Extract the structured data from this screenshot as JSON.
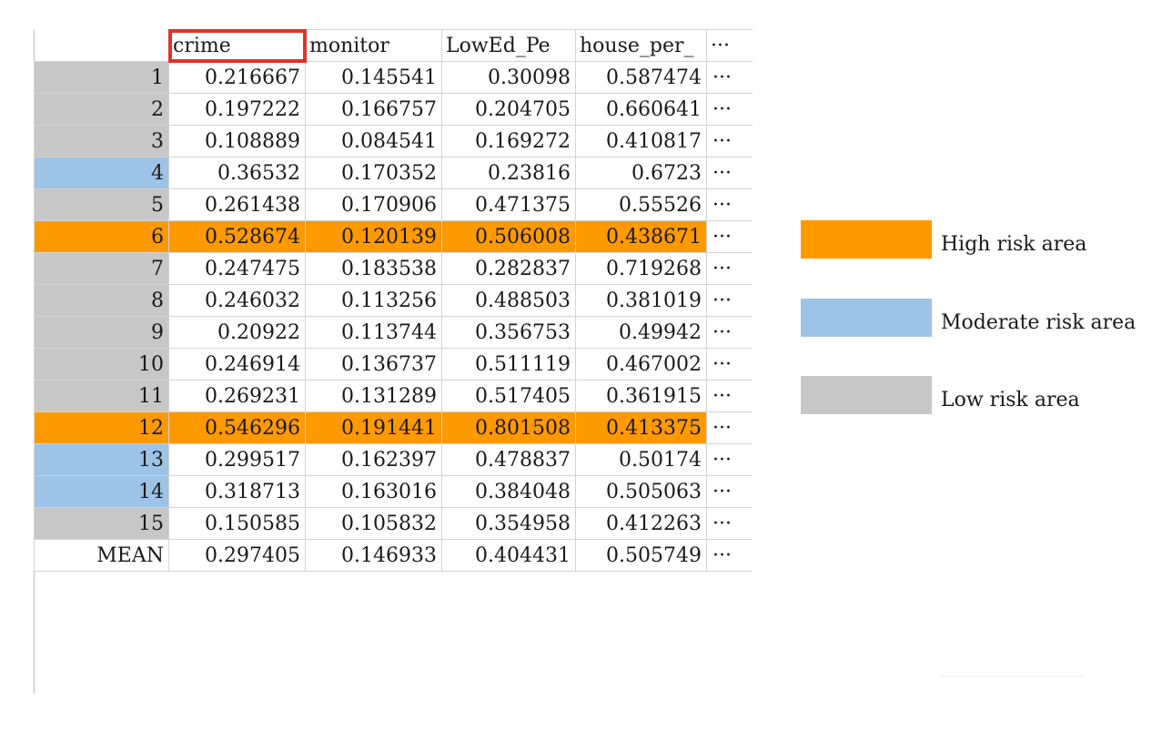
{
  "table": {
    "columns": [
      "crime",
      "monitor",
      "LowEd_Pe",
      "house_per_",
      "···"
    ],
    "rows": [
      {
        "index": "1",
        "values": [
          "0.216667",
          "0.145541",
          "0.30098",
          "0.587474"
        ],
        "more": "···",
        "risk": "low"
      },
      {
        "index": "2",
        "values": [
          "0.197222",
          "0.166757",
          "0.204705",
          "0.660641"
        ],
        "more": "···",
        "risk": "low"
      },
      {
        "index": "3",
        "values": [
          "0.108889",
          "0.084541",
          "0.169272",
          "0.410817"
        ],
        "more": "···",
        "risk": "low"
      },
      {
        "index": "4",
        "values": [
          "0.36532",
          "0.170352",
          "0.23816",
          "0.6723"
        ],
        "more": "···",
        "risk": "moderate"
      },
      {
        "index": "5",
        "values": [
          "0.261438",
          "0.170906",
          "0.471375",
          "0.55526"
        ],
        "more": "···",
        "risk": "low"
      },
      {
        "index": "6",
        "values": [
          "0.528674",
          "0.120139",
          "0.506008",
          "0.438671"
        ],
        "more": "···",
        "risk": "high"
      },
      {
        "index": "7",
        "values": [
          "0.247475",
          "0.183538",
          "0.282837",
          "0.719268"
        ],
        "more": "···",
        "risk": "low"
      },
      {
        "index": "8",
        "values": [
          "0.246032",
          "0.113256",
          "0.488503",
          "0.381019"
        ],
        "more": "···",
        "risk": "low"
      },
      {
        "index": "9",
        "values": [
          "0.20922",
          "0.113744",
          "0.356753",
          "0.49942"
        ],
        "more": "···",
        "risk": "low"
      },
      {
        "index": "10",
        "values": [
          "0.246914",
          "0.136737",
          "0.511119",
          "0.467002"
        ],
        "more": "···",
        "risk": "low"
      },
      {
        "index": "11",
        "values": [
          "0.269231",
          "0.131289",
          "0.517405",
          "0.361915"
        ],
        "more": "···",
        "risk": "low"
      },
      {
        "index": "12",
        "values": [
          "0.546296",
          "0.191441",
          "0.801508",
          "0.413375"
        ],
        "more": "···",
        "risk": "high"
      },
      {
        "index": "13",
        "values": [
          "0.299517",
          "0.162397",
          "0.478837",
          "0.50174"
        ],
        "more": "···",
        "risk": "moderate"
      },
      {
        "index": "14",
        "values": [
          "0.318713",
          "0.163016",
          "0.384048",
          "0.505063"
        ],
        "more": "···",
        "risk": "moderate"
      },
      {
        "index": "15",
        "values": [
          "0.150585",
          "0.105832",
          "0.354958",
          "0.412263"
        ],
        "more": "···",
        "risk": "low"
      },
      {
        "index": "MEAN",
        "values": [
          "0.297405",
          "0.146933",
          "0.404431",
          "0.505749"
        ],
        "more": "···",
        "risk": "none"
      }
    ]
  },
  "highlighted_column": "crime",
  "legend": {
    "items": [
      {
        "label": "High risk area",
        "color": "#ff9900"
      },
      {
        "label": "Moderate risk area",
        "color": "#9dc3e6"
      },
      {
        "label": "Low risk area",
        "color": "#c7c7c7"
      }
    ]
  },
  "colors": {
    "high": "#ff9900",
    "moderate": "#9dc3e6",
    "low": "#c7c7c7",
    "highlight_box": "#e23129"
  }
}
